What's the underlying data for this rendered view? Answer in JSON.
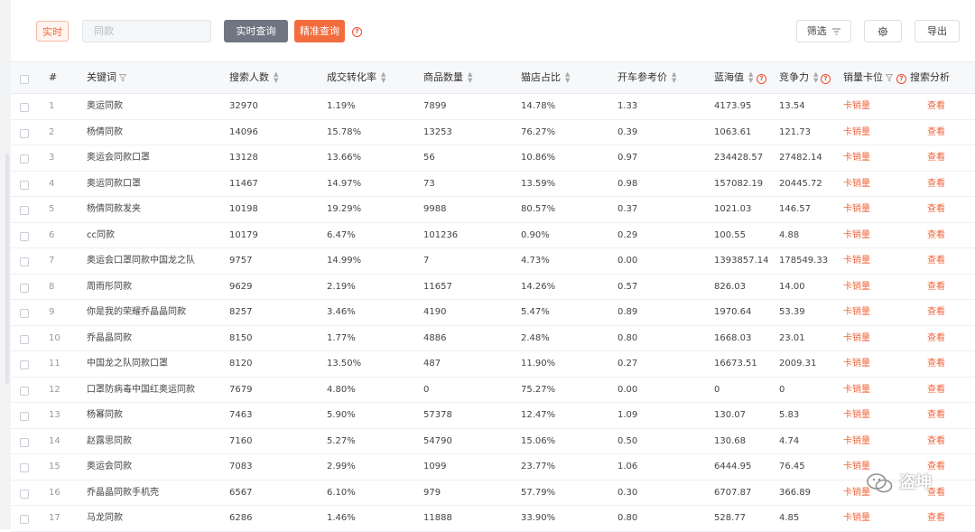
{
  "toolbar": {
    "realtime_tag": "实时",
    "search_placeholder": "同款",
    "realtime_query_label": "实时查询",
    "precise_query_label": "精准查询",
    "filter_label": "筛选",
    "export_label": "导出"
  },
  "columns": {
    "index": "#",
    "keyword": "关键词",
    "search_users": "搜索人数",
    "conversion": "成交转化率",
    "product_count": "商品数量",
    "tmall_ratio": "猫店占比",
    "ref_price": "开车参考价",
    "blue_sea": "蓝海值",
    "competition": "竞争力",
    "sales_slot": "销量卡位",
    "search_analysis": "搜索分析"
  },
  "rows": [
    {
      "idx": "1",
      "keyword": "奥运同款",
      "users": "32970",
      "conv": "1.19%",
      "count": "7899",
      "tmall": "14.78%",
      "price": "1.33",
      "blue": "4173.95",
      "comp": "13.54",
      "slot": "卡销量",
      "analysis": "查看"
    },
    {
      "idx": "2",
      "keyword": "杨倩同款",
      "users": "14096",
      "conv": "15.78%",
      "count": "13253",
      "tmall": "76.27%",
      "price": "0.39",
      "blue": "1063.61",
      "comp": "121.73",
      "slot": "卡销量",
      "analysis": "查看"
    },
    {
      "idx": "3",
      "keyword": "奥运会同款口罩",
      "users": "13128",
      "conv": "13.66%",
      "count": "56",
      "tmall": "10.86%",
      "price": "0.97",
      "blue": "234428.57",
      "comp": "27482.14",
      "slot": "卡销量",
      "analysis": "查看"
    },
    {
      "idx": "4",
      "keyword": "奥运同款口罩",
      "users": "11467",
      "conv": "14.97%",
      "count": "73",
      "tmall": "13.59%",
      "price": "0.98",
      "blue": "157082.19",
      "comp": "20445.72",
      "slot": "卡销量",
      "analysis": "查看"
    },
    {
      "idx": "5",
      "keyword": "杨倩同款发夹",
      "users": "10198",
      "conv": "19.29%",
      "count": "9988",
      "tmall": "80.57%",
      "price": "0.37",
      "blue": "1021.03",
      "comp": "146.57",
      "slot": "卡销量",
      "analysis": "查看"
    },
    {
      "idx": "6",
      "keyword": "cc同款",
      "users": "10179",
      "conv": "6.47%",
      "count": "101236",
      "tmall": "0.90%",
      "price": "0.29",
      "blue": "100.55",
      "comp": "4.88",
      "slot": "卡销量",
      "analysis": "查看"
    },
    {
      "idx": "7",
      "keyword": "奥运会口罩同款中国龙之队",
      "users": "9757",
      "conv": "14.99%",
      "count": "7",
      "tmall": "4.73%",
      "price": "0.00",
      "blue": "1393857.14",
      "comp": "178549.33",
      "slot": "卡销量",
      "analysis": "查看"
    },
    {
      "idx": "8",
      "keyword": "周雨彤同款",
      "users": "9629",
      "conv": "2.19%",
      "count": "11657",
      "tmall": "14.26%",
      "price": "0.57",
      "blue": "826.03",
      "comp": "14.00",
      "slot": "卡销量",
      "analysis": "查看"
    },
    {
      "idx": "9",
      "keyword": "你是我的荣耀乔晶晶同款",
      "users": "8257",
      "conv": "3.46%",
      "count": "4190",
      "tmall": "5.47%",
      "price": "0.89",
      "blue": "1970.64",
      "comp": "53.39",
      "slot": "卡销量",
      "analysis": "查看"
    },
    {
      "idx": "10",
      "keyword": "乔晶晶同款",
      "users": "8150",
      "conv": "1.77%",
      "count": "4886",
      "tmall": "2.48%",
      "price": "0.80",
      "blue": "1668.03",
      "comp": "23.01",
      "slot": "卡销量",
      "analysis": "查看"
    },
    {
      "idx": "11",
      "keyword": "中国龙之队同款口罩",
      "users": "8120",
      "conv": "13.50%",
      "count": "487",
      "tmall": "11.90%",
      "price": "0.27",
      "blue": "16673.51",
      "comp": "2009.31",
      "slot": "卡销量",
      "analysis": "查看"
    },
    {
      "idx": "12",
      "keyword": "口罩防病毒中国红奥运同款",
      "users": "7679",
      "conv": "4.80%",
      "count": "0",
      "tmall": "75.27%",
      "price": "0.00",
      "blue": "0",
      "comp": "0",
      "slot": "卡销量",
      "analysis": "查看"
    },
    {
      "idx": "13",
      "keyword": "杨幂同款",
      "users": "7463",
      "conv": "5.90%",
      "count": "57378",
      "tmall": "12.47%",
      "price": "1.09",
      "blue": "130.07",
      "comp": "5.83",
      "slot": "卡销量",
      "analysis": "查看"
    },
    {
      "idx": "14",
      "keyword": "赵露思同款",
      "users": "7160",
      "conv": "5.27%",
      "count": "54790",
      "tmall": "15.06%",
      "price": "0.50",
      "blue": "130.68",
      "comp": "4.74",
      "slot": "卡销量",
      "analysis": "查看"
    },
    {
      "idx": "15",
      "keyword": "奥运会同款",
      "users": "7083",
      "conv": "2.99%",
      "count": "1099",
      "tmall": "23.77%",
      "price": "1.06",
      "blue": "6444.95",
      "comp": "76.45",
      "slot": "卡销量",
      "analysis": "查看"
    },
    {
      "idx": "16",
      "keyword": "乔晶晶同款手机壳",
      "users": "6567",
      "conv": "6.10%",
      "count": "979",
      "tmall": "57.79%",
      "price": "0.30",
      "blue": "6707.87",
      "comp": "366.89",
      "slot": "卡销量",
      "analysis": "查看"
    },
    {
      "idx": "17",
      "keyword": "马龙同款",
      "users": "6286",
      "conv": "1.46%",
      "count": "11888",
      "tmall": "33.90%",
      "price": "0.80",
      "blue": "528.77",
      "comp": "4.85",
      "slot": "卡销量",
      "analysis": "查看"
    }
  ],
  "watermark": {
    "text": "盗坤"
  },
  "colors": {
    "accent": "#f36c3d",
    "gray_button": "#6f7682",
    "header_bg": "#f7f8fa"
  }
}
